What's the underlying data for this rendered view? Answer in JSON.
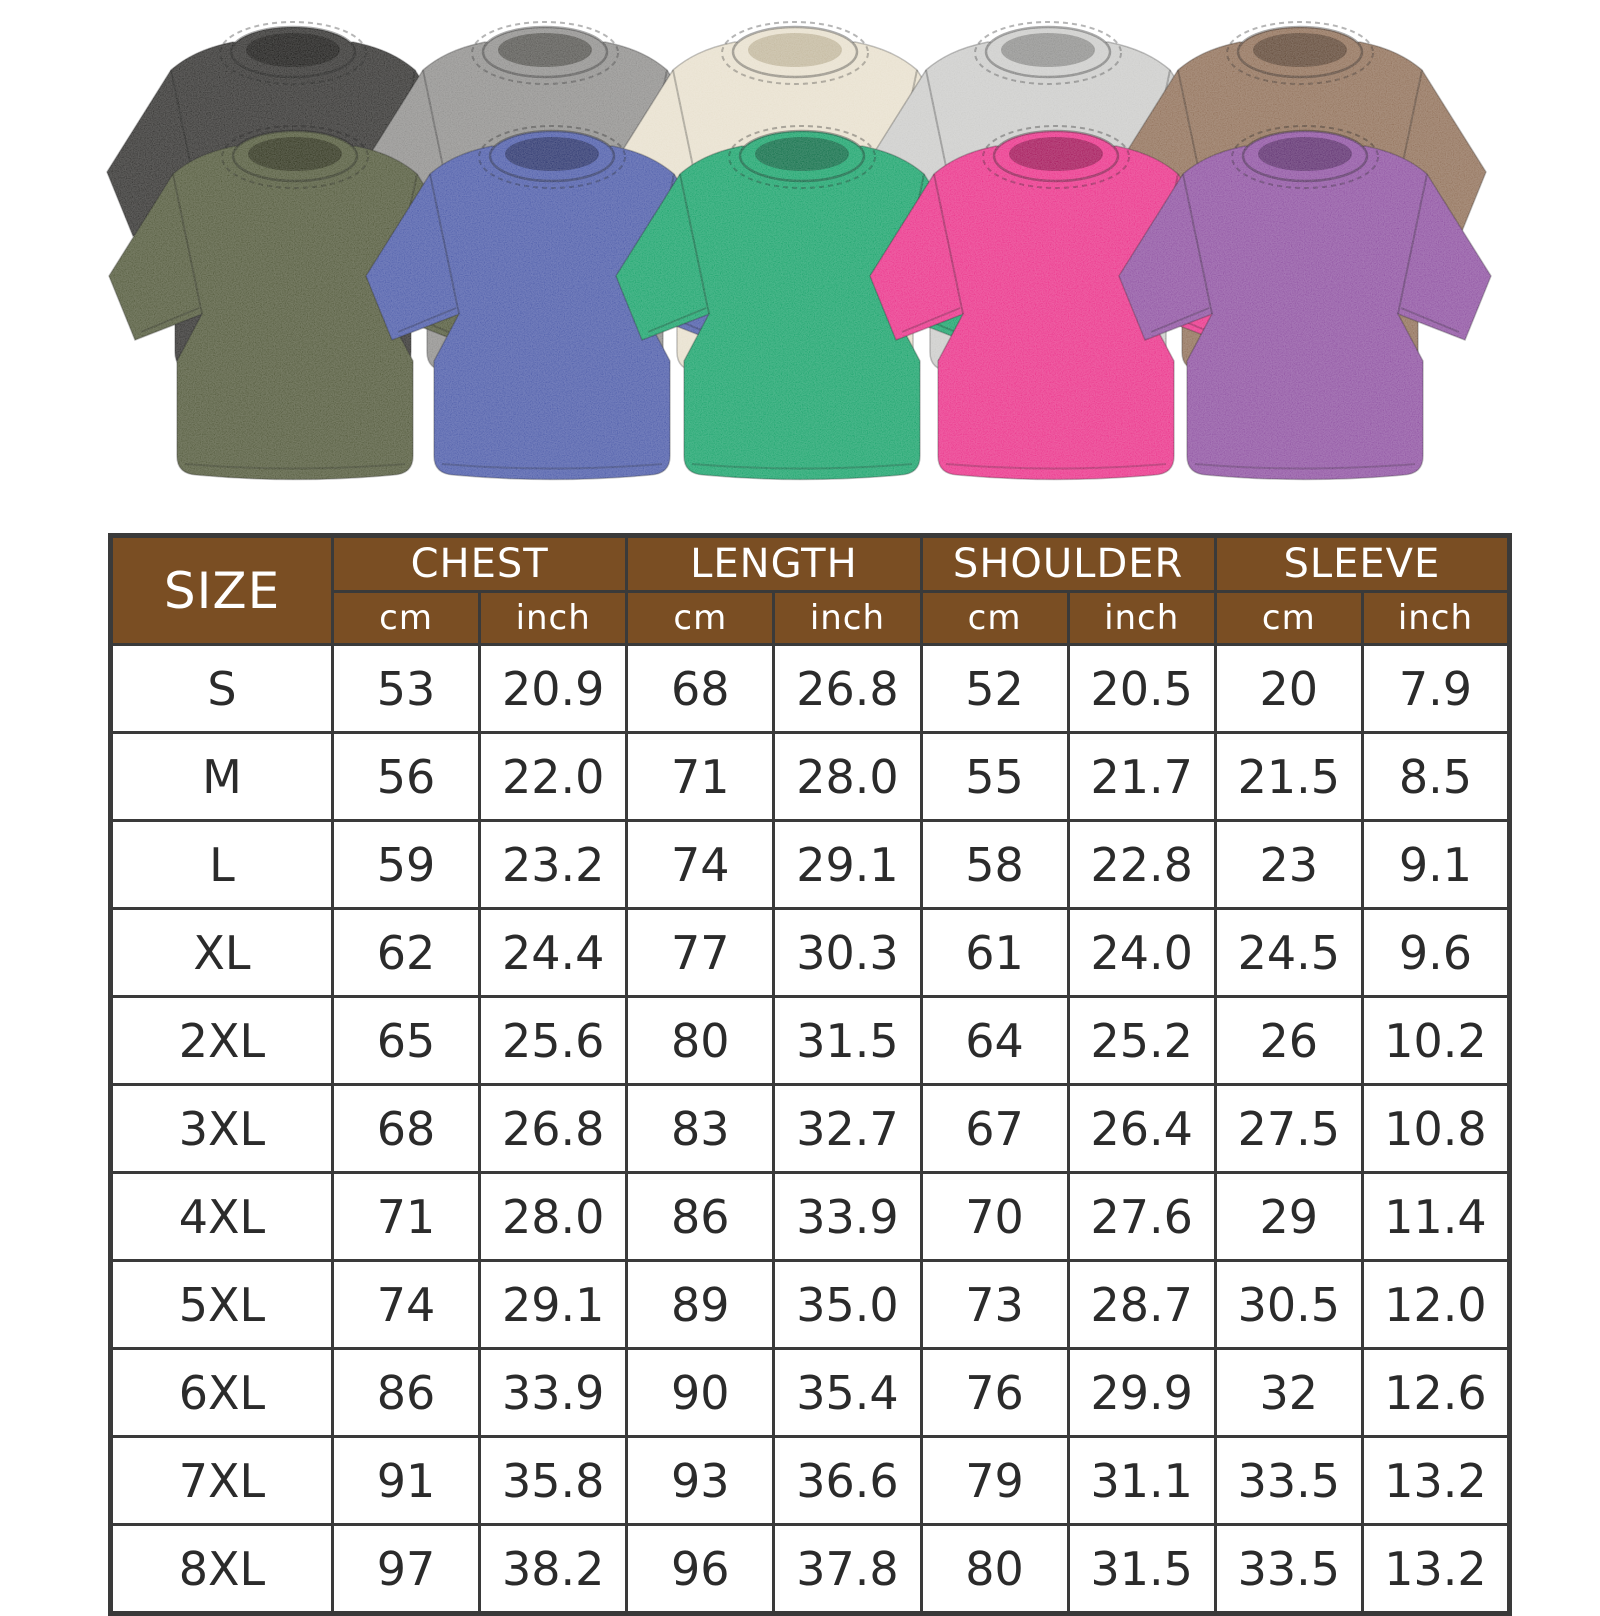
{
  "colors": {
    "background": "#ffffff",
    "header_bg": "#7a4e23",
    "header_text": "#ffffff",
    "table_border": "#3a3a3a",
    "cell_text": "#2b2b2b"
  },
  "shirts": {
    "back_row": [
      {
        "name": "black",
        "color": "#2f2e2c",
        "collar": "#161513"
      },
      {
        "name": "grey",
        "color": "#8e8d8b",
        "collar": "#555450"
      },
      {
        "name": "cream",
        "color": "#e7dfcc",
        "collar": "#c2b79c"
      },
      {
        "name": "light-grey",
        "color": "#cbcbc9",
        "collar": "#8f8f8d"
      },
      {
        "name": "brown",
        "color": "#8f6e56",
        "collar": "#5e4533"
      }
    ],
    "front_row": [
      {
        "name": "army-green",
        "color": "#4f5637",
        "collar": "#2c3019"
      },
      {
        "name": "blue",
        "color": "#4a59a8",
        "collar": "#27316b"
      },
      {
        "name": "green",
        "color": "#16a269",
        "collar": "#0a6b44"
      },
      {
        "name": "rose",
        "color": "#ea2f88",
        "collar": "#a31257"
      },
      {
        "name": "purple",
        "color": "#8d4fa0",
        "collar": "#5c2c6d"
      }
    ]
  },
  "chart_data": {
    "type": "table",
    "header": {
      "size_label": "SIZE",
      "groups": [
        {
          "label": "CHEST",
          "units": [
            "cm",
            "inch"
          ]
        },
        {
          "label": "LENGTH",
          "units": [
            "cm",
            "inch"
          ]
        },
        {
          "label": "SHOULDER",
          "units": [
            "cm",
            "inch"
          ]
        },
        {
          "label": "SLEEVE",
          "units": [
            "cm",
            "inch"
          ]
        }
      ]
    },
    "rows": [
      {
        "size": "S",
        "values": [
          "53",
          "20.9",
          "68",
          "26.8",
          "52",
          "20.5",
          "20",
          "7.9"
        ]
      },
      {
        "size": "M",
        "values": [
          "56",
          "22.0",
          "71",
          "28.0",
          "55",
          "21.7",
          "21.5",
          "8.5"
        ]
      },
      {
        "size": "L",
        "values": [
          "59",
          "23.2",
          "74",
          "29.1",
          "58",
          "22.8",
          "23",
          "9.1"
        ]
      },
      {
        "size": "XL",
        "values": [
          "62",
          "24.4",
          "77",
          "30.3",
          "61",
          "24.0",
          "24.5",
          "9.6"
        ]
      },
      {
        "size": "2XL",
        "values": [
          "65",
          "25.6",
          "80",
          "31.5",
          "64",
          "25.2",
          "26",
          "10.2"
        ]
      },
      {
        "size": "3XL",
        "values": [
          "68",
          "26.8",
          "83",
          "32.7",
          "67",
          "26.4",
          "27.5",
          "10.8"
        ]
      },
      {
        "size": "4XL",
        "values": [
          "71",
          "28.0",
          "86",
          "33.9",
          "70",
          "27.6",
          "29",
          "11.4"
        ]
      },
      {
        "size": "5XL",
        "values": [
          "74",
          "29.1",
          "89",
          "35.0",
          "73",
          "28.7",
          "30.5",
          "12.0"
        ]
      },
      {
        "size": "6XL",
        "values": [
          "86",
          "33.9",
          "90",
          "35.4",
          "76",
          "29.9",
          "32",
          "12.6"
        ]
      },
      {
        "size": "7XL",
        "values": [
          "91",
          "35.8",
          "93",
          "36.6",
          "79",
          "31.1",
          "33.5",
          "13.2"
        ]
      },
      {
        "size": "8XL",
        "values": [
          "97",
          "38.2",
          "96",
          "37.8",
          "80",
          "31.5",
          "33.5",
          "13.2"
        ]
      }
    ]
  }
}
